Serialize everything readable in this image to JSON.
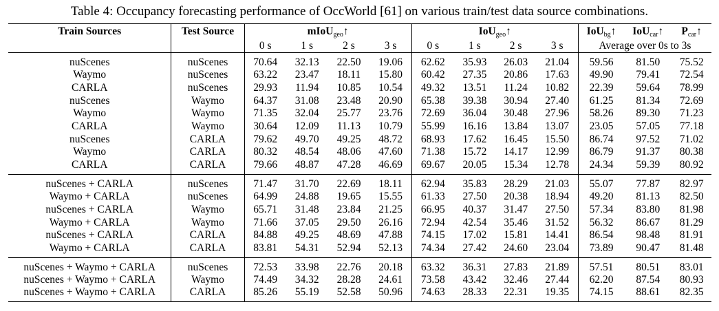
{
  "caption": "Table 4: Occupancy forecasting performance of OccWorld [61] on various train/test data source combinations.",
  "headers": {
    "train": "Train Sources",
    "test": "Test Source",
    "miou_main": "mIoU",
    "miou_sub": "geo",
    "iou_main": "IoU",
    "iou_sub": "geo",
    "iou_bg_main": "IoU",
    "iou_bg_sub": "bg",
    "iou_car_main": "IoU",
    "iou_car_sub": "car",
    "p_car_main": "P",
    "p_car_sub": "car",
    "arrow": "↑",
    "time_labels": [
      "0 s",
      "1 s",
      "2 s",
      "3 s"
    ],
    "average_note": "Average over 0s to 3s"
  },
  "groups": [
    [
      {
        "train": "nuScenes",
        "test": "nuScenes",
        "vals": [
          "70.64",
          "32.13",
          "22.50",
          "19.06",
          "62.62",
          "35.93",
          "26.03",
          "21.04",
          "59.56",
          "81.50",
          "75.52"
        ]
      },
      {
        "train": "Waymo",
        "test": "nuScenes",
        "vals": [
          "63.22",
          "23.47",
          "18.11",
          "15.80",
          "60.42",
          "27.35",
          "20.86",
          "17.63",
          "49.90",
          "79.41",
          "72.54"
        ]
      },
      {
        "train": "CARLA",
        "test": "nuScenes",
        "vals": [
          "29.93",
          "11.94",
          "10.85",
          "10.54",
          "49.32",
          "13.51",
          "11.24",
          "10.82",
          "22.39",
          "59.64",
          "78.99"
        ]
      },
      {
        "train": "nuScenes",
        "test": "Waymo",
        "vals": [
          "64.37",
          "31.08",
          "23.48",
          "20.90",
          "65.38",
          "39.38",
          "30.94",
          "27.40",
          "61.25",
          "81.34",
          "72.69"
        ]
      },
      {
        "train": "Waymo",
        "test": "Waymo",
        "vals": [
          "71.35",
          "32.04",
          "25.77",
          "23.76",
          "72.69",
          "36.04",
          "30.48",
          "27.96",
          "58.26",
          "89.30",
          "71.23"
        ]
      },
      {
        "train": "CARLA",
        "test": "Waymo",
        "vals": [
          "30.64",
          "12.09",
          "11.13",
          "10.79",
          "55.99",
          "16.16",
          "13.84",
          "13.07",
          "23.05",
          "57.05",
          "77.18"
        ]
      },
      {
        "train": "nuScenes",
        "test": "CARLA",
        "vals": [
          "79.62",
          "49.70",
          "49.25",
          "48.72",
          "68.93",
          "17.62",
          "16.45",
          "15.50",
          "86.74",
          "97.52",
          "71.02"
        ]
      },
      {
        "train": "Waymo",
        "test": "CARLA",
        "vals": [
          "80.32",
          "48.54",
          "48.06",
          "47.60",
          "71.38",
          "15.72",
          "14.17",
          "12.99",
          "86.79",
          "91.37",
          "80.38"
        ]
      },
      {
        "train": "CARLA",
        "test": "CARLA",
        "vals": [
          "79.66",
          "48.87",
          "47.28",
          "46.69",
          "69.67",
          "20.05",
          "15.34",
          "12.78",
          "24.34",
          "59.39",
          "80.92"
        ]
      }
    ],
    [
      {
        "train": "nuScenes + CARLA",
        "test": "nuScenes",
        "vals": [
          "71.47",
          "31.70",
          "22.69",
          "18.11",
          "62.94",
          "35.83",
          "28.29",
          "21.03",
          "55.07",
          "77.87",
          "82.97"
        ]
      },
      {
        "train": "Waymo + CARLA",
        "test": "nuScenes",
        "vals": [
          "64.99",
          "24.88",
          "19.65",
          "15.55",
          "61.33",
          "27.50",
          "20.38",
          "18.94",
          "49.20",
          "81.13",
          "82.50"
        ]
      },
      {
        "train": "nuScenes + CARLA",
        "test": "Waymo",
        "vals": [
          "65.71",
          "31.48",
          "23.84",
          "21.25",
          "66.95",
          "40.37",
          "31.47",
          "27.50",
          "57.34",
          "83.80",
          "81.98"
        ]
      },
      {
        "train": "Waymo + CARLA",
        "test": "Waymo",
        "vals": [
          "71.66",
          "37.05",
          "29.50",
          "26.16",
          "72.94",
          "42.54",
          "35.46",
          "31.52",
          "56.32",
          "86.67",
          "81.29"
        ]
      },
      {
        "train": "nuScenes + CARLA",
        "test": "CARLA",
        "vals": [
          "84.88",
          "49.25",
          "48.69",
          "47.88",
          "74.15",
          "17.02",
          "15.81",
          "14.41",
          "86.54",
          "98.48",
          "81.91"
        ]
      },
      {
        "train": "Waymo + CARLA",
        "test": "CARLA",
        "vals": [
          "83.81",
          "54.31",
          "52.94",
          "52.13",
          "74.34",
          "27.42",
          "24.60",
          "23.04",
          "73.89",
          "90.47",
          "81.48"
        ]
      }
    ],
    [
      {
        "train": "nuScenes + Waymo + CARLA",
        "test": "nuScenes",
        "vals": [
          "72.53",
          "33.98",
          "22.76",
          "20.18",
          "63.32",
          "36.31",
          "27.83",
          "21.89",
          "57.51",
          "80.51",
          "83.01"
        ]
      },
      {
        "train": "nuScenes + Waymo + CARLA",
        "test": "Waymo",
        "vals": [
          "74.49",
          "34.32",
          "28.28",
          "24.61",
          "73.58",
          "43.42",
          "32.46",
          "27.44",
          "62.20",
          "87.54",
          "80.93"
        ]
      },
      {
        "train": "nuScenes + Waymo + CARLA",
        "test": "CARLA",
        "vals": [
          "85.26",
          "55.19",
          "52.58",
          "50.96",
          "74.63",
          "28.33",
          "22.31",
          "19.35",
          "74.15",
          "88.61",
          "82.35"
        ]
      }
    ]
  ]
}
